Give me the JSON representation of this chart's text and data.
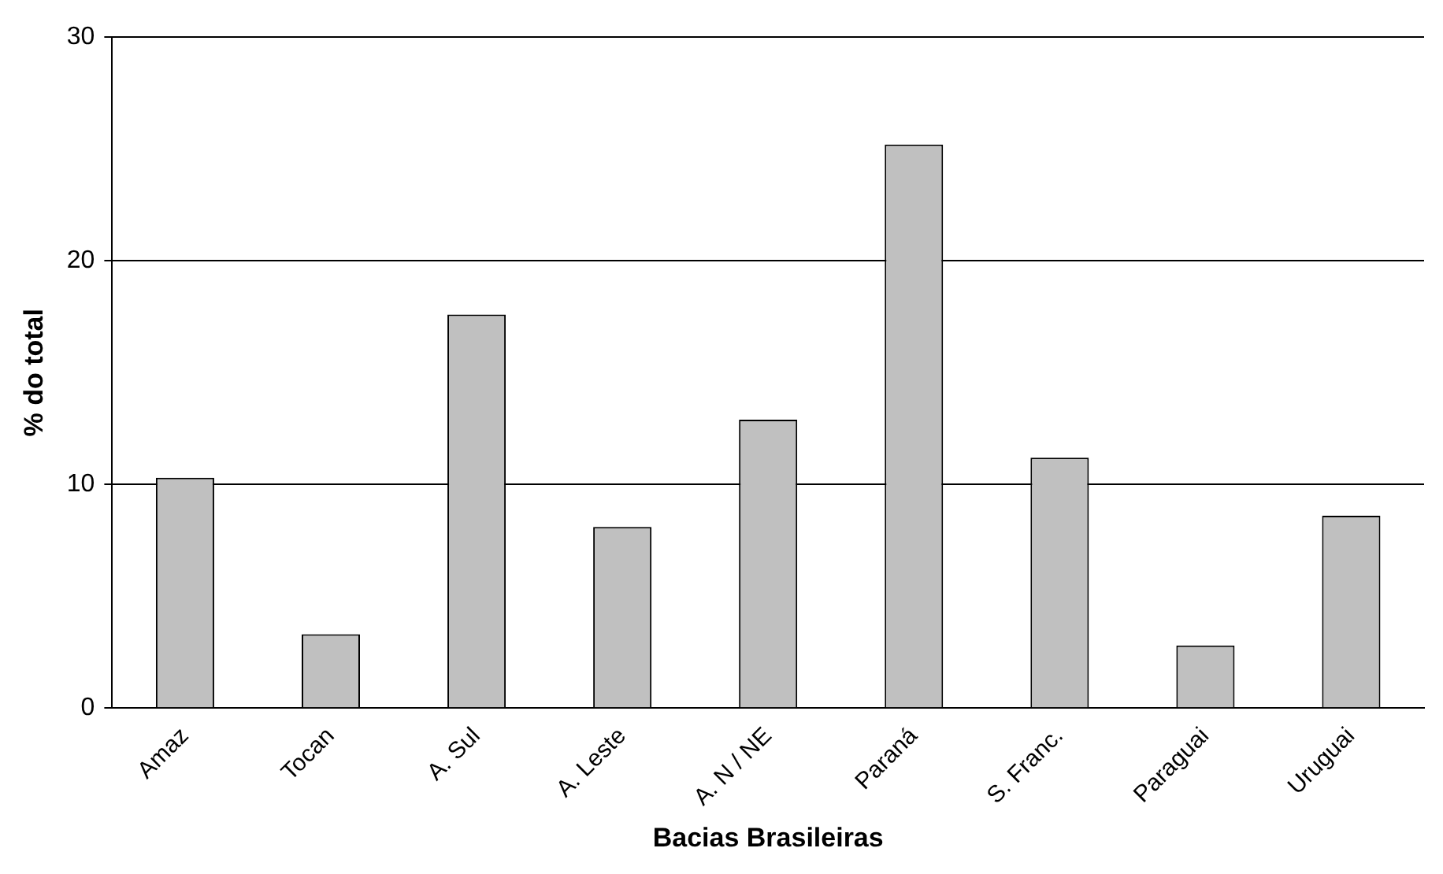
{
  "chart_data": {
    "type": "bar",
    "xlabel": "Bacias Brasileiras",
    "ylabel": "% do total",
    "categories": [
      "Amaz",
      "Tocan",
      "A. Sul",
      "A. Leste",
      "A. N / NE",
      "Paraná",
      "S. Franc.",
      "Paraguai",
      "Uruguai"
    ],
    "values": [
      10.3,
      3.3,
      17.6,
      8.1,
      12.9,
      25.2,
      11.2,
      2.8,
      8.6
    ],
    "color": "#c0c0c0",
    "ylim": [
      0,
      30
    ],
    "yticks": [
      0,
      10,
      20,
      30
    ],
    "grid": "y",
    "legend": false
  }
}
